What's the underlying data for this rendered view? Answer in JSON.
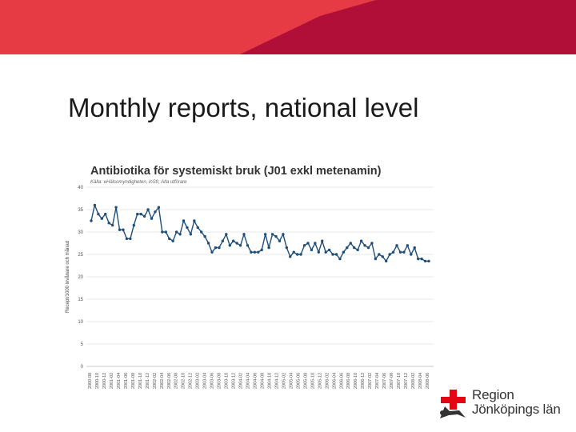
{
  "slide": {
    "title": "Monthly reports, national level",
    "banner_colors": {
      "red": "#e63a45",
      "dark_red": "#b10f37"
    }
  },
  "logo": {
    "line1": "Region",
    "line2": "Jönköpings län",
    "icon": "region-cross-person-icon",
    "colors": {
      "red": "#e30613",
      "text": "#333333"
    }
  },
  "chart_data": {
    "type": "line",
    "title": "Antibiotika för systemiskt bruk (J01 exkl metenamin)",
    "source": "Källa: eHälsomyndigheten, inSfr, Alla utförare",
    "ylabel": "Recept/1000 invånare och månad",
    "xlabel": "",
    "ylim": [
      0,
      40
    ],
    "y_ticks": [
      "0",
      "5",
      "10",
      "15",
      "20",
      "25",
      "30",
      "35",
      "40"
    ],
    "grid": true,
    "legend": "none",
    "line_color": "#1f4e79",
    "x_tick_labels": [
      "2000-08",
      "2000-10",
      "2000-12",
      "2001-02",
      "2001-04",
      "2001-06",
      "2001-08",
      "2001-10",
      "2001-12",
      "2002-02",
      "2002-04",
      "2002-06",
      "2002-08",
      "2002-10",
      "2002-12",
      "2003-02",
      "2003-04",
      "2003-06",
      "2003-08",
      "2003-10",
      "2003-12",
      "2004-02",
      "2004-04",
      "2004-06",
      "2004-08",
      "2004-10",
      "2004-12",
      "2005-02",
      "2005-04",
      "2005-06",
      "2005-08",
      "2005-10",
      "2005-12",
      "2006-02",
      "2006-04",
      "2006-06",
      "2006-08",
      "2006-10",
      "2006-12",
      "2007-02",
      "2007-04",
      "2007-06",
      "2007-08",
      "2007-10",
      "2007-12",
      "2008-02",
      "2008-04",
      "2008-06"
    ],
    "series": [
      {
        "values": [
          32.5,
          36,
          34,
          33,
          34,
          32,
          31.5,
          35.5,
          30.5,
          30.5,
          28.5,
          28.5,
          31.5,
          34,
          34,
          33.5,
          35,
          33,
          34.5,
          35.5,
          30,
          30,
          28.5,
          28,
          30,
          29.5,
          32.5,
          31,
          29.5,
          32.5,
          31,
          30,
          29,
          27.5,
          25.5,
          26.5,
          26.5,
          28,
          29.5,
          27,
          28,
          27.5,
          27,
          29.5,
          27,
          25.5,
          25.5,
          25.5,
          26,
          29.5,
          26.5,
          29.5,
          29,
          28,
          29.5,
          26.5,
          24.5,
          25.5,
          25,
          25,
          27,
          27.5,
          26,
          27.5,
          25.5,
          28,
          25.5,
          26,
          25,
          25,
          24,
          25.5,
          26.5,
          27.5,
          26.5,
          26,
          28,
          27,
          26.5,
          27.5,
          24,
          25,
          24.5,
          23.5,
          25,
          25.5,
          27,
          25.5,
          25.5,
          27,
          25,
          26.5,
          24,
          24,
          23.5,
          23.5
        ]
      }
    ]
  }
}
